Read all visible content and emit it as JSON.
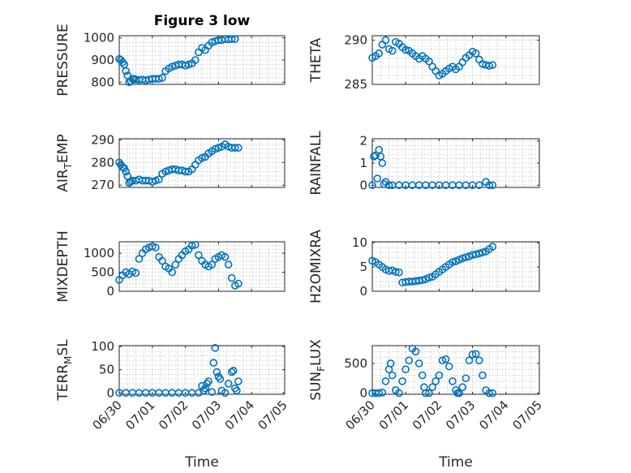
{
  "figure": {
    "title": "Figure 3 low",
    "xlabel": "Time"
  },
  "chart_data": [
    {
      "type": "scatter",
      "ylabel": "PRESSURE",
      "title": "Figure 3 low",
      "ylim": [
        790,
        1010
      ],
      "yticks": [
        "800",
        "900",
        "1000"
      ],
      "ytick_values": [
        800,
        900,
        1000
      ],
      "xlim": [
        0,
        5
      ],
      "grid": true,
      "minor_grid": true,
      "x_day_offsets": [
        0,
        0.05,
        0.1,
        0.15,
        0.2,
        0.25,
        0.3,
        0.35,
        0.4,
        0.45,
        0.5,
        0.6,
        0.7,
        0.8,
        0.9,
        1.0,
        1.1,
        1.2,
        1.3,
        1.4,
        1.5,
        1.6,
        1.7,
        1.8,
        1.9,
        2.0,
        2.1,
        2.2,
        2.3,
        2.4,
        2.5,
        2.6,
        2.7,
        2.8,
        2.9,
        3.0,
        3.1,
        3.2,
        3.3,
        3.4,
        3.5
      ],
      "values": [
        905,
        900,
        890,
        880,
        850,
        830,
        800,
        805,
        815,
        815,
        812,
        810,
        812,
        808,
        812,
        815,
        815,
        815,
        820,
        850,
        862,
        870,
        875,
        880,
        880,
        875,
        880,
        885,
        900,
        935,
        955,
        945,
        965,
        980,
        985,
        990,
        990,
        995,
        993,
        995,
        995
      ]
    },
    {
      "type": "scatter",
      "ylabel": "THETA",
      "ylim": [
        285,
        290.5
      ],
      "yticks": [
        "285",
        "290"
      ],
      "ytick_values": [
        285,
        290
      ],
      "xlim": [
        0,
        5
      ],
      "grid": true,
      "minor_grid": true,
      "x_day_offsets": [
        0,
        0.1,
        0.2,
        0.3,
        0.4,
        0.5,
        0.6,
        0.7,
        0.8,
        0.9,
        1.0,
        1.1,
        1.2,
        1.3,
        1.4,
        1.5,
        1.6,
        1.7,
        1.8,
        1.9,
        2.0,
        2.1,
        2.2,
        2.3,
        2.4,
        2.5,
        2.6,
        2.7,
        2.8,
        2.9,
        3.0,
        3.1,
        3.2,
        3.3,
        3.4,
        3.5,
        3.6
      ],
      "values": [
        288,
        288.2,
        288.5,
        289.5,
        290,
        289,
        288.8,
        289.8,
        289.6,
        289.2,
        288.9,
        288.8,
        288.5,
        288.2,
        287.9,
        288.2,
        287.9,
        287.6,
        287,
        286.5,
        286,
        286.2,
        286.5,
        286.8,
        287,
        286.7,
        287,
        287.5,
        288,
        288.3,
        288.7,
        288.5,
        287.8,
        287.3,
        287.2,
        287.1,
        287.2
      ]
    },
    {
      "type": "scatter",
      "ylabel": "AIR_TEMP",
      "ylabel_main": "AIR",
      "ylabel_sub": "T",
      "ylabel_rest": "EMP",
      "ylim": [
        269,
        290.5
      ],
      "yticks": [
        "270",
        "280",
        "290"
      ],
      "ytick_values": [
        270,
        280,
        290
      ],
      "xlim": [
        0,
        5
      ],
      "grid": true,
      "minor_grid": true,
      "x_day_offsets": [
        0,
        0.05,
        0.1,
        0.15,
        0.2,
        0.25,
        0.3,
        0.35,
        0.4,
        0.5,
        0.6,
        0.7,
        0.8,
        0.9,
        1.0,
        1.1,
        1.2,
        1.3,
        1.4,
        1.5,
        1.6,
        1.7,
        1.8,
        1.9,
        2.0,
        2.1,
        2.2,
        2.3,
        2.4,
        2.5,
        2.6,
        2.7,
        2.8,
        2.9,
        3.0,
        3.1,
        3.2,
        3.3,
        3.4,
        3.5,
        3.6
      ],
      "values": [
        280,
        279,
        278,
        277.5,
        276,
        274,
        271,
        271.5,
        272,
        272,
        272.5,
        272,
        272,
        272,
        271.5,
        272,
        272.5,
        275,
        276,
        276.5,
        277,
        277,
        276.5,
        276.5,
        276,
        276,
        277,
        279,
        281,
        282,
        282.5,
        284,
        285,
        286,
        286.5,
        287,
        288,
        287,
        286.5,
        286.5,
        286.5
      ]
    },
    {
      "type": "scatter",
      "ylabel": "RAINFALL",
      "ylim": [
        -0.1,
        2.1
      ],
      "yticks": [
        "0",
        "1",
        "2"
      ],
      "ytick_values": [
        0,
        1,
        2
      ],
      "xlim": [
        0,
        5
      ],
      "grid": true,
      "minor_grid": true,
      "x_day_offsets": [
        0,
        0.05,
        0.1,
        0.15,
        0.2,
        0.25,
        0.3,
        0.35,
        0.4,
        0.5,
        0.6,
        0.8,
        1.0,
        1.2,
        1.4,
        1.6,
        1.8,
        2.0,
        2.2,
        2.4,
        2.6,
        2.8,
        3.0,
        3.2,
        3.4,
        3.5,
        3.6
      ],
      "values": [
        0,
        1.3,
        1.35,
        0.3,
        1.6,
        1.3,
        1.0,
        0.05,
        0.15,
        0,
        0,
        0,
        0,
        0,
        0,
        0,
        0,
        0,
        0,
        0,
        0,
        0,
        0,
        0,
        0.15,
        0,
        0
      ]
    },
    {
      "type": "scatter",
      "ylabel": "MIXDEPTH",
      "ylim": [
        0,
        1300
      ],
      "yticks": [
        "0",
        "500",
        "1000"
      ],
      "ytick_values": [
        0,
        500,
        1000
      ],
      "xlim": [
        0,
        5
      ],
      "grid": true,
      "minor_grid": true,
      "x_day_offsets": [
        0,
        0.1,
        0.2,
        0.3,
        0.4,
        0.5,
        0.6,
        0.7,
        0.8,
        0.9,
        1.0,
        1.1,
        1.2,
        1.3,
        1.4,
        1.5,
        1.6,
        1.7,
        1.8,
        1.9,
        2.0,
        2.1,
        2.2,
        2.3,
        2.4,
        2.5,
        2.6,
        2.7,
        2.8,
        2.9,
        3.0,
        3.1,
        3.2,
        3.3,
        3.4,
        3.5,
        3.6
      ],
      "values": [
        300,
        420,
        500,
        450,
        520,
        480,
        850,
        1000,
        1100,
        1150,
        1180,
        1150,
        900,
        800,
        650,
        600,
        500,
        700,
        850,
        950,
        1050,
        1100,
        1200,
        1220,
        950,
        800,
        700,
        650,
        700,
        850,
        900,
        950,
        900,
        700,
        350,
        150,
        200
      ]
    },
    {
      "type": "scatter",
      "ylabel": "H2OMIXRA",
      "ylim": [
        0,
        10.2
      ],
      "yticks": [
        "0",
        "5",
        "10"
      ],
      "ytick_values": [
        0,
        5,
        10
      ],
      "xlim": [
        0,
        5
      ],
      "grid": true,
      "minor_grid": true,
      "x_day_offsets": [
        0,
        0.1,
        0.2,
        0.3,
        0.4,
        0.5,
        0.6,
        0.7,
        0.8,
        0.9,
        1.0,
        1.1,
        1.2,
        1.3,
        1.4,
        1.5,
        1.6,
        1.7,
        1.8,
        1.9,
        2.0,
        2.1,
        2.2,
        2.3,
        2.4,
        2.5,
        2.6,
        2.7,
        2.8,
        2.9,
        3.0,
        3.1,
        3.2,
        3.3,
        3.4,
        3.5,
        3.6
      ],
      "values": [
        6.3,
        6,
        5.5,
        5,
        4.5,
        4.2,
        4.3,
        4,
        3.9,
        1.8,
        1.9,
        2,
        2,
        2.1,
        2.2,
        2.3,
        2.5,
        2.8,
        3,
        3.5,
        4,
        4.5,
        5,
        5.5,
        6,
        6.2,
        6.5,
        6.8,
        7,
        7.2,
        7.5,
        7.6,
        7.8,
        8,
        8.2,
        8.7,
        9.2
      ]
    },
    {
      "type": "scatter",
      "ylabel": "TERR_MSL",
      "ylabel_main": "TERR",
      "ylabel_sub": "M",
      "ylabel_rest": "SL",
      "ylim": [
        -3,
        102
      ],
      "yticks": [
        "0",
        "50",
        "100"
      ],
      "ytick_values": [
        0,
        50,
        100
      ],
      "xlim": [
        0,
        5
      ],
      "grid": true,
      "minor_grid": true,
      "xticks": [
        "06/30",
        "07/01",
        "07/02",
        "07/03",
        "07/04",
        "07/05"
      ],
      "x_day_offsets": [
        0,
        0.2,
        0.4,
        0.6,
        0.8,
        1.0,
        1.2,
        1.4,
        1.6,
        1.8,
        2.0,
        2.2,
        2.4,
        2.5,
        2.55,
        2.6,
        2.65,
        2.7,
        2.8,
        2.85,
        2.9,
        2.95,
        3.0,
        3.05,
        3.1,
        3.2,
        3.3,
        3.4,
        3.45,
        3.5,
        3.55,
        3.6
      ],
      "values": [
        0,
        0,
        0,
        0,
        0,
        0,
        0,
        0,
        0,
        0,
        0,
        0,
        0,
        15,
        5,
        10,
        20,
        25,
        2,
        65,
        97,
        45,
        35,
        30,
        5,
        0,
        20,
        45,
        48,
        10,
        5,
        25
      ]
    },
    {
      "type": "scatter",
      "ylabel": "SUN_FLUX",
      "ylabel_main": "SUN",
      "ylabel_sub": "F",
      "ylabel_rest": "LUX",
      "ylim": [
        -20,
        800
      ],
      "yticks": [
        "0",
        "500"
      ],
      "ytick_values": [
        0,
        500
      ],
      "xlim": [
        0,
        5
      ],
      "grid": true,
      "minor_grid": true,
      "xticks": [
        "06/30",
        "07/01",
        "07/02",
        "07/03",
        "07/04",
        "07/05"
      ],
      "x_day_offsets": [
        0,
        0.1,
        0.2,
        0.3,
        0.4,
        0.5,
        0.55,
        0.6,
        0.7,
        0.8,
        0.9,
        1.0,
        1.1,
        1.2,
        1.3,
        1.4,
        1.5,
        1.55,
        1.6,
        1.7,
        1.8,
        1.9,
        2.0,
        2.1,
        2.2,
        2.3,
        2.4,
        2.5,
        2.55,
        2.6,
        2.7,
        2.8,
        2.9,
        3.0,
        3.1,
        3.2,
        3.3,
        3.4,
        3.5,
        3.6
      ],
      "values": [
        0,
        0,
        0,
        10,
        200,
        400,
        500,
        300,
        50,
        0,
        200,
        400,
        550,
        750,
        700,
        500,
        300,
        100,
        0,
        0,
        100,
        200,
        300,
        550,
        570,
        450,
        200,
        50,
        0,
        0,
        100,
        250,
        550,
        650,
        660,
        550,
        300,
        50,
        0,
        0
      ]
    }
  ]
}
